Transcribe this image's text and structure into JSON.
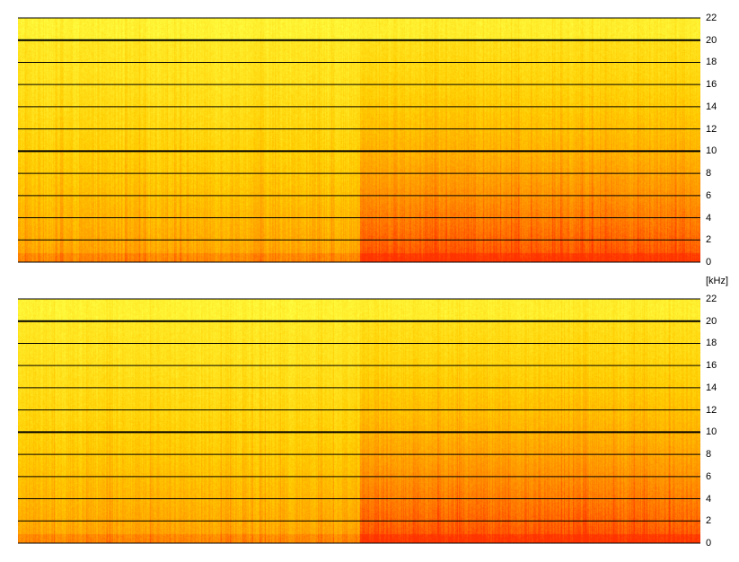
{
  "chart_data": [
    {
      "type": "heatmap",
      "name_hint": "channel-1",
      "y_ticks": [
        "0",
        "2",
        "4",
        "6",
        "8",
        "10",
        "12",
        "14",
        "16",
        "18",
        "20",
        "22"
      ],
      "y_tick_values": [
        0,
        2,
        4,
        6,
        8,
        10,
        12,
        14,
        16,
        18,
        20,
        22
      ],
      "ylim": [
        0,
        22
      ],
      "grid": true,
      "major_grid_values": [
        10,
        20
      ],
      "colormap": [
        "#ff3300",
        "#ff8800",
        "#ffcc00",
        "#ffff44"
      ],
      "regions": [
        {
          "x_fraction_range": [
            0,
            0.5
          ],
          "intensity_low_freq": 0.55,
          "intensity_high_freq": 0.15
        },
        {
          "x_fraction_range": [
            0.5,
            1
          ],
          "intensity_low_freq": 0.9,
          "intensity_high_freq": 0.2
        }
      ]
    },
    {
      "type": "heatmap",
      "name_hint": "channel-2",
      "y_ticks": [
        "0",
        "2",
        "4",
        "6",
        "8",
        "10",
        "12",
        "14",
        "16",
        "18",
        "20",
        "22"
      ],
      "y_tick_values": [
        0,
        2,
        4,
        6,
        8,
        10,
        12,
        14,
        16,
        18,
        20,
        22
      ],
      "ylim": [
        0,
        22
      ],
      "grid": true,
      "major_grid_values": [
        10,
        20
      ],
      "colormap": [
        "#ff3300",
        "#ff8800",
        "#ffcc00",
        "#ffff44"
      ],
      "regions": [
        {
          "x_fraction_range": [
            0,
            0.5
          ],
          "intensity_low_freq": 0.55,
          "intensity_high_freq": 0.15
        },
        {
          "x_fraction_range": [
            0.5,
            1
          ],
          "intensity_low_freq": 0.9,
          "intensity_high_freq": 0.2
        }
      ]
    }
  ],
  "y_unit_label": "[kHz]"
}
